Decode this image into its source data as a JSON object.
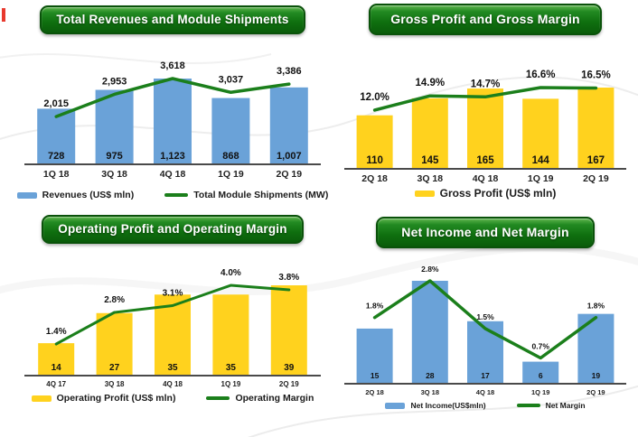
{
  "colors": {
    "blue": "#6aa2d8",
    "yellow": "#ffd21e",
    "green": "#1b7f1b",
    "axis": "#4a4a4a",
    "label": "#111111",
    "banner_green": "#0f6f0f",
    "corner_mark_red": "#e8392e"
  },
  "chart_data": [
    {
      "type": "bar+line",
      "title": "Total Revenues and Module Shipments",
      "categories": [
        "1Q 18",
        "3Q 18",
        "4Q 18",
        "1Q 19",
        "2Q 19"
      ],
      "bar_series": {
        "name": "Revenues (US$ mln)",
        "color": "#6aa2d8",
        "values": [
          728,
          975,
          1123,
          868,
          1007
        ],
        "labels": [
          "728",
          "975",
          "1,123",
          "868",
          "1,007"
        ]
      },
      "line_series": {
        "name": "Total Module Shipments (MW)",
        "color": "#1b7f1b",
        "values": [
          2015,
          2953,
          3618,
          3037,
          3386
        ],
        "labels": [
          "2,015",
          "2,953",
          "3,618",
          "3,037",
          "3,386"
        ]
      },
      "ylim_bar": [
        0,
        1123
      ],
      "ylim_line": [
        0,
        3618
      ],
      "grid": false,
      "legend_position": "bottom",
      "legend": [
        {
          "swatch": "bar",
          "color": "#6aa2d8",
          "label": "Revenues (US$ mln)"
        },
        {
          "swatch": "line",
          "color": "#1b7f1b",
          "label": "Total Module Shipments (MW)"
        }
      ]
    },
    {
      "type": "bar+line",
      "title": "Gross Profit and Gross Margin",
      "categories": [
        "2Q 18",
        "3Q 18",
        "4Q 18",
        "1Q 19",
        "2Q 19"
      ],
      "bar_series": {
        "name": "Gross Profit (US$ mln)",
        "color": "#ffd21e",
        "values": [
          110,
          145,
          165,
          144,
          167
        ],
        "labels": [
          "110",
          "145",
          "165",
          "144",
          "167"
        ]
      },
      "line_series": {
        "name": "Gross Margin",
        "color": "#1b7f1b",
        "values": [
          12.0,
          14.9,
          14.7,
          16.6,
          16.5
        ],
        "labels": [
          "12.0%",
          "14.9%",
          "14.7%",
          "16.6%",
          "16.5%"
        ]
      },
      "ylim_bar": [
        0,
        167
      ],
      "ylim_line": [
        0,
        16.6
      ],
      "grid": false,
      "legend_position": "bottom",
      "legend": [
        {
          "swatch": "bar",
          "color": "#ffd21e",
          "label": "Gross Profit (US$ mln)"
        }
      ]
    },
    {
      "type": "bar+line",
      "title": "Operating Profit and Operating Margin",
      "categories": [
        "4Q 17",
        "3Q 18",
        "4Q 18",
        "1Q 19",
        "2Q 19"
      ],
      "bar_series": {
        "name": "Operating Profit (US$ mln)",
        "color": "#ffd21e",
        "values": [
          14,
          27,
          35,
          35,
          39
        ],
        "labels": [
          "14",
          "27",
          "35",
          "35",
          "39"
        ]
      },
      "line_series": {
        "name": "Operating Margin",
        "color": "#1b7f1b",
        "values": [
          1.4,
          2.8,
          3.1,
          4.0,
          3.8
        ],
        "labels": [
          "1.4%",
          "2.8%",
          "3.1%",
          "4.0%",
          "3.8%"
        ]
      },
      "ylim_bar": [
        0,
        39
      ],
      "ylim_line": [
        0,
        4.0
      ],
      "grid": false,
      "legend_position": "bottom",
      "legend": [
        {
          "swatch": "bar",
          "color": "#ffd21e",
          "label": "Operating Profit (US$ mln)"
        },
        {
          "swatch": "line",
          "color": "#1b7f1b",
          "label": "Operating Margin"
        }
      ]
    },
    {
      "type": "bar+line",
      "title": "Net Income and Net Margin",
      "categories": [
        "2Q 18",
        "3Q 18",
        "4Q 18",
        "1Q 19",
        "2Q 19"
      ],
      "bar_series": {
        "name": "Net Income(US$mln)",
        "color": "#6aa2d8",
        "values": [
          15,
          28,
          17,
          6,
          19
        ],
        "labels": [
          "15",
          "28",
          "17",
          "6",
          "19"
        ]
      },
      "line_series": {
        "name": "Net Margin",
        "color": "#1b7f1b",
        "values": [
          1.8,
          2.8,
          1.5,
          0.7,
          1.8
        ],
        "labels": [
          "1.8%",
          "2.8%",
          "1.5%",
          "0.7%",
          "1.8%"
        ]
      },
      "ylim_bar": [
        0,
        28
      ],
      "ylim_line": [
        0,
        2.8
      ],
      "grid": false,
      "legend_position": "bottom",
      "legend": [
        {
          "swatch": "bar",
          "color": "#6aa2d8",
          "label": "Net Income(US$mln)"
        },
        {
          "swatch": "line",
          "color": "#1b7f1b",
          "label": "Net Margin"
        }
      ]
    }
  ]
}
